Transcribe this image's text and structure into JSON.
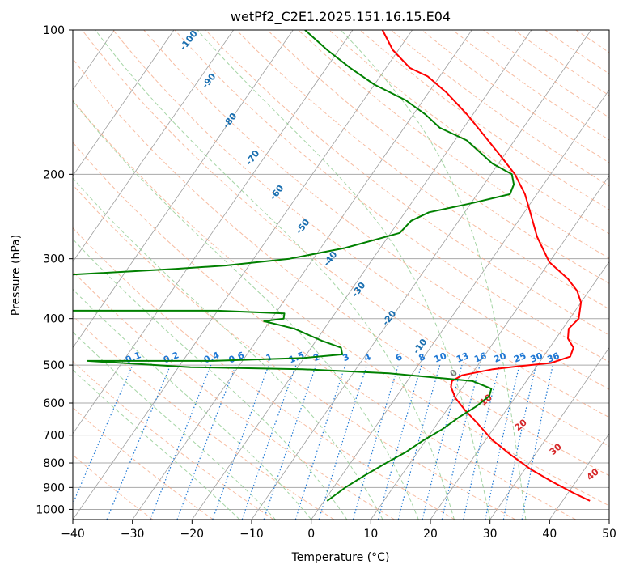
{
  "chart_data": {
    "type": "line",
    "title": "wetPf2_C2E1.2025.151.16.15.E04",
    "xlabel": "Temperature (°C)",
    "ylabel": "Pressure (hPa)",
    "x_range": [
      -40,
      50
    ],
    "y_range": [
      1050,
      100
    ],
    "y_scale": "log",
    "skew": "skew-T",
    "x_ticks": [
      "−40",
      "−30",
      "−20",
      "−10",
      "0",
      "10",
      "20",
      "30",
      "40",
      "50"
    ],
    "y_ticks": [
      "1000",
      "900",
      "800",
      "700",
      "600",
      "500",
      "400",
      "300",
      "200",
      "100"
    ],
    "mixing_ratio_labels": [
      "0.1",
      "0.2",
      "0.4",
      "0.6",
      "1",
      "1.5",
      "2",
      "3",
      "4",
      "6",
      "8",
      "10",
      "13",
      "16",
      "20",
      "25",
      "30",
      "36"
    ],
    "moist_adiabat_labels": [
      "-100",
      "-90",
      "-80",
      "-70",
      "-60",
      "-50",
      "-40",
      "-30",
      "-20",
      "-10"
    ],
    "dry_adiabat_labels": [
      "0",
      "10",
      "20",
      "30",
      "40"
    ],
    "colors": {
      "temperature": "#ff0000",
      "dewpoint": "#008000",
      "isotherm": "#9e9e9e",
      "isobar": "#aaaaaa",
      "dry_adiabat": "#f4a582",
      "moist_adiabat": "#8fca8f",
      "mixing_ratio": "#1f78d4",
      "moist_label": "#1a6fb0",
      "dry_label": "#d62728",
      "zero_label": "#777777"
    },
    "series": [
      {
        "name": "Temperature",
        "points": [
          [
            44.6,
            960
          ],
          [
            41,
            925
          ],
          [
            36,
            875
          ],
          [
            31,
            825
          ],
          [
            26,
            770
          ],
          [
            21,
            715
          ],
          [
            17,
            665
          ],
          [
            13,
            620
          ],
          [
            10,
            585
          ],
          [
            8,
            555
          ],
          [
            7.5,
            540
          ],
          [
            8.5,
            525
          ],
          [
            13,
            510
          ],
          [
            17.5,
            502
          ],
          [
            22,
            495
          ],
          [
            24.5,
            480
          ],
          [
            24,
            460
          ],
          [
            22,
            440
          ],
          [
            21,
            420
          ],
          [
            21.5,
            400
          ],
          [
            20,
            370
          ],
          [
            18,
            350
          ],
          [
            15,
            330
          ],
          [
            10,
            305
          ],
          [
            5,
            270
          ],
          [
            1,
            240
          ],
          [
            -2,
            220
          ],
          [
            -6,
            200
          ],
          [
            -10,
            185
          ],
          [
            -16,
            165
          ],
          [
            -21,
            150
          ],
          [
            -27,
            135
          ],
          [
            -32,
            125
          ],
          [
            -36,
            120
          ],
          [
            -41,
            110
          ],
          [
            -45,
            100
          ]
        ]
      },
      {
        "name": "Dewpoint",
        "points": [
          [
            0.5,
            960
          ],
          [
            1,
            940
          ],
          [
            2,
            900
          ],
          [
            3.8,
            850
          ],
          [
            6,
            800
          ],
          [
            8,
            760
          ],
          [
            9.5,
            720
          ],
          [
            11.5,
            680
          ],
          [
            13,
            640
          ],
          [
            14.5,
            610
          ],
          [
            15.5,
            580
          ],
          [
            15,
            560
          ],
          [
            11,
            540
          ],
          [
            -4,
            520
          ],
          [
            -19,
            510
          ],
          [
            -38,
            505
          ],
          [
            -56,
            490
          ],
          [
            -35,
            490
          ],
          [
            -20,
            483
          ],
          [
            -14,
            475
          ],
          [
            -15,
            460
          ],
          [
            -19,
            445
          ],
          [
            -25,
            420
          ],
          [
            -31,
            405
          ],
          [
            -28,
            400
          ],
          [
            -28.5,
            390
          ],
          [
            -40,
            385
          ],
          [
            -80,
            385
          ],
          [
            -80,
            330
          ],
          [
            -52,
            315
          ],
          [
            -44,
            310
          ],
          [
            -34,
            300
          ],
          [
            -26,
            285
          ],
          [
            -18.5,
            265
          ],
          [
            -18,
            250
          ],
          [
            -16,
            240
          ],
          [
            -10,
            230
          ],
          [
            -4.5,
            220
          ],
          [
            -5,
            210
          ],
          [
            -6.5,
            200
          ],
          [
            -11,
            190
          ],
          [
            -18,
            170
          ],
          [
            -24,
            160
          ],
          [
            -28,
            150
          ],
          [
            -33,
            140
          ],
          [
            -40,
            130
          ],
          [
            -46,
            120
          ],
          [
            -52,
            110
          ],
          [
            -58,
            100
          ]
        ]
      }
    ]
  }
}
